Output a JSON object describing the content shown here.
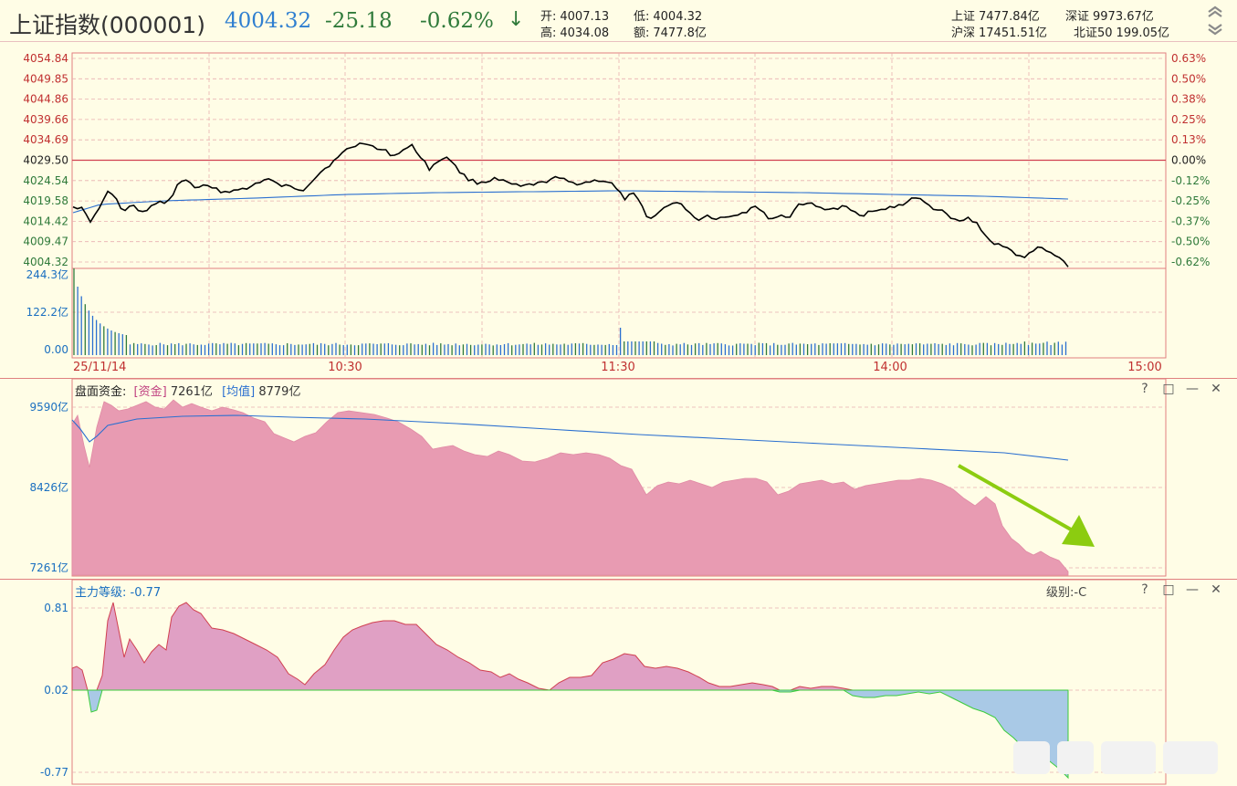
{
  "header": {
    "name": "上证指数(000001)",
    "price": "4004.32",
    "change": "-25.18",
    "pct": "-0.62%",
    "arrow": "↓",
    "open_label": "开:",
    "open": "4007.13",
    "low_label": "低:",
    "low": "4004.32",
    "high_label": "高:",
    "high": "4034.08",
    "amount_label": "额:",
    "amount": "7477.8亿",
    "sh_label": "上证",
    "sh": "7477.84亿",
    "sz_label": "深证",
    "sz": "9973.67亿",
    "hs_label": "沪深",
    "hs": "17451.51亿",
    "nb_label": "北证50",
    "nb": "199.05亿"
  },
  "price_panel": {
    "left_ticks": [
      "4054.84",
      "4049.85",
      "4044.86",
      "4039.66",
      "4034.69",
      "4029.50",
      "4024.54",
      "4019.58",
      "4014.42",
      "4009.47",
      "4004.32"
    ],
    "right_ticks": [
      "0.63%",
      "0.50%",
      "0.38%",
      "0.25%",
      "0.13%",
      "0.00%",
      "-0.12%",
      "-0.25%",
      "-0.37%",
      "-0.50%",
      "-0.62%"
    ],
    "volume_ticks": [
      "244.3亿",
      "122.2亿",
      "0.00"
    ],
    "time_labels": [
      "25/11/14",
      "10:30",
      "11:30",
      "14:00",
      "15:00"
    ]
  },
  "fund_panel": {
    "title": "盘面资金:",
    "fund_label": "[资金]",
    "fund_value": "7261亿",
    "avg_label": "[均值]",
    "avg_value": "8779亿",
    "ticks": [
      "9590亿",
      "8426亿",
      "7261亿"
    ],
    "buttons": [
      "?",
      "□",
      "—",
      "✕"
    ]
  },
  "main_panel": {
    "title": "主力等级:",
    "value": "-0.77",
    "grade": "级别:-C",
    "ticks": [
      "0.81",
      "0.02",
      "-0.77"
    ],
    "buttons": [
      "?",
      "□",
      "—",
      "✕"
    ]
  },
  "colors": {
    "background": "#fffde6",
    "grid": "#e0a0a0",
    "price_line": "#000000",
    "avg_line": "#2a6fd0",
    "up": "#d04050",
    "down": "#2f7a3a",
    "fund_fill": "#e8a0b4",
    "main_pos_fill": "#e0a0c0",
    "main_neg_fill": "#a8c8e8",
    "arrow": "#8ccc10"
  }
}
